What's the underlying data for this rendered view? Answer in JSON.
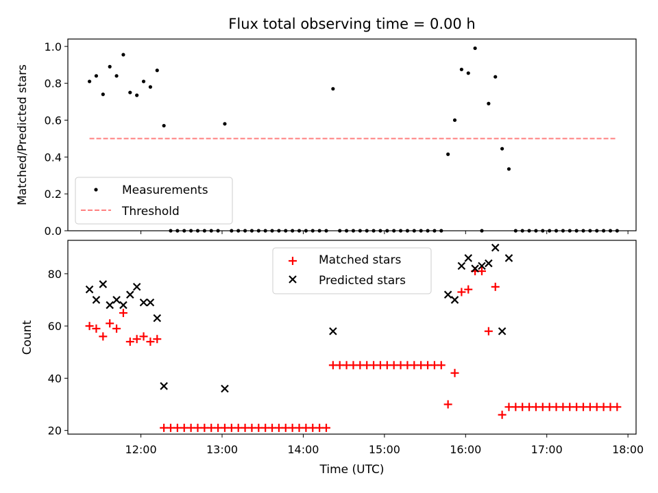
{
  "chart_data": [
    {
      "type": "scatter",
      "title": "Flux total observing time = 0.00 h",
      "xlabel": "",
      "ylabel": "Matched/Predicted stars",
      "xlim": [
        "11:06",
        "18:06"
      ],
      "ylim": [
        0,
        1.04
      ],
      "yticks": [
        0.0,
        0.2,
        0.4,
        0.6,
        0.8,
        1.0
      ],
      "ytick_labels": [
        "0.0",
        "0.2",
        "0.4",
        "0.6",
        "0.8",
        "1.0"
      ],
      "legend": {
        "position": "lower-left",
        "entries": [
          "Measurements",
          "Threshold"
        ]
      },
      "series": [
        {
          "name": "Measurements",
          "marker": "dot",
          "color": "#000000",
          "x": [
            "11:22",
            "11:27",
            "11:32",
            "11:37",
            "11:42",
            "11:47",
            "11:52",
            "11:57",
            "12:02",
            "12:07",
            "12:12",
            "12:17",
            "12:22",
            "12:27",
            "12:32",
            "12:37",
            "12:42",
            "12:47",
            "12:52",
            "12:57",
            "13:02",
            "13:07",
            "13:12",
            "13:17",
            "13:22",
            "13:27",
            "13:32",
            "13:37",
            "13:42",
            "13:47",
            "13:52",
            "13:57",
            "14:02",
            "14:07",
            "14:12",
            "14:17",
            "14:22",
            "14:27",
            "14:32",
            "14:37",
            "14:42",
            "14:47",
            "14:52",
            "14:57",
            "15:02",
            "15:07",
            "15:12",
            "15:17",
            "15:22",
            "15:27",
            "15:32",
            "15:37",
            "15:42",
            "15:47",
            "15:52",
            "15:57",
            "16:02",
            "16:07",
            "16:12",
            "16:17",
            "16:22",
            "16:27",
            "16:32",
            "16:37",
            "16:42",
            "16:47",
            "16:52",
            "16:57",
            "17:02",
            "17:07",
            "17:12",
            "17:17",
            "17:22",
            "17:27",
            "17:32",
            "17:37",
            "17:42",
            "17:47",
            "17:52"
          ],
          "y": [
            0.81,
            0.84,
            0.74,
            0.89,
            0.84,
            0.955,
            0.75,
            0.735,
            0.81,
            0.78,
            0.87,
            0.57,
            0.0,
            0.0,
            0.0,
            0.0,
            0.0,
            0.0,
            0.0,
            0.0,
            0.58,
            0.0,
            0.0,
            0.0,
            0.0,
            0.0,
            0.0,
            0.0,
            0.0,
            0.0,
            0.0,
            0.0,
            0.0,
            0.0,
            0.0,
            0.0,
            0.77,
            0.0,
            0.0,
            0.0,
            0.0,
            0.0,
            0.0,
            0.0,
            0.0,
            0.0,
            0.0,
            0.0,
            0.0,
            0.0,
            0.0,
            0.0,
            0.0,
            0.415,
            0.6,
            0.875,
            0.855,
            0.99,
            0.0,
            0.69,
            0.835,
            0.445,
            0.335,
            0.0,
            0.0,
            0.0,
            0.0,
            0.0,
            0.0,
            0.0,
            0.0,
            0.0,
            0.0,
            0.0,
            0.0,
            0.0,
            0.0,
            0.0,
            0.0
          ]
        },
        {
          "name": "Threshold",
          "line": "dashed",
          "color": "#ff7f7f",
          "x": [
            "11:22",
            "17:52"
          ],
          "y": [
            0.5,
            0.5
          ]
        }
      ]
    },
    {
      "type": "scatter",
      "title": "",
      "xlabel": "Time (UTC)",
      "ylabel": "Count",
      "xlim": [
        "11:06",
        "18:06"
      ],
      "ylim": [
        18.6,
        92.8
      ],
      "xticks": [
        "12:00",
        "13:00",
        "14:00",
        "15:00",
        "16:00",
        "17:00",
        "18:00"
      ],
      "xtick_labels": [
        "12:00",
        "13:00",
        "14:00",
        "15:00",
        "16:00",
        "17:00",
        "18:00"
      ],
      "yticks": [
        20,
        40,
        60,
        80
      ],
      "ytick_labels": [
        "20",
        "40",
        "60",
        "80"
      ],
      "legend": {
        "position": "top-center",
        "entries": [
          "Matched stars",
          "Predicted stars"
        ]
      },
      "series": [
        {
          "name": "Matched stars",
          "marker": "plus",
          "color": "#ff0000",
          "x": [
            "11:22",
            "11:27",
            "11:32",
            "11:37",
            "11:42",
            "11:47",
            "11:52",
            "11:57",
            "12:02",
            "12:07",
            "12:12",
            "12:17",
            "12:22",
            "12:27",
            "12:32",
            "12:37",
            "12:42",
            "12:47",
            "12:52",
            "12:57",
            "13:02",
            "13:07",
            "13:12",
            "13:17",
            "13:22",
            "13:27",
            "13:32",
            "13:37",
            "13:42",
            "13:47",
            "13:52",
            "13:57",
            "14:02",
            "14:07",
            "14:12",
            "14:17",
            "14:22",
            "14:27",
            "14:32",
            "14:37",
            "14:42",
            "14:47",
            "14:52",
            "14:57",
            "15:02",
            "15:07",
            "15:12",
            "15:17",
            "15:22",
            "15:27",
            "15:32",
            "15:37",
            "15:42",
            "15:47",
            "15:52",
            "15:57",
            "16:02",
            "16:07",
            "16:12",
            "16:17",
            "16:22",
            "16:27",
            "16:32",
            "16:37",
            "16:42",
            "16:47",
            "16:52",
            "16:57",
            "17:02",
            "17:07",
            "17:12",
            "17:17",
            "17:22",
            "17:27",
            "17:32",
            "17:37",
            "17:42",
            "17:47",
            "17:52"
          ],
          "y": [
            60,
            59,
            56,
            61,
            59,
            65,
            54,
            55,
            56,
            54,
            55,
            21,
            21,
            21,
            21,
            21,
            21,
            21,
            21,
            21,
            21,
            21,
            21,
            21,
            21,
            21,
            21,
            21,
            21,
            21,
            21,
            21,
            21,
            21,
            21,
            21,
            45,
            45,
            45,
            45,
            45,
            45,
            45,
            45,
            45,
            45,
            45,
            45,
            45,
            45,
            45,
            45,
            45,
            30,
            42,
            73,
            74,
            81,
            81,
            58,
            75,
            26,
            29,
            29,
            29,
            29,
            29,
            29,
            29,
            29,
            29,
            29,
            29,
            29,
            29,
            29,
            29,
            29,
            29
          ]
        },
        {
          "name": "Predicted stars",
          "marker": "x",
          "color": "#000000",
          "x": [
            "11:22",
            "11:27",
            "11:32",
            "11:37",
            "11:42",
            "11:47",
            "11:52",
            "11:57",
            "12:02",
            "12:07",
            "12:12",
            "12:17",
            "13:02",
            "14:22",
            "15:47",
            "15:52",
            "15:57",
            "16:02",
            "16:07",
            "16:12",
            "16:17",
            "16:22",
            "16:27",
            "16:32"
          ],
          "y": [
            74,
            70,
            76,
            68,
            70,
            68,
            72,
            75,
            69,
            69,
            63,
            37,
            36,
            58,
            72,
            70,
            83,
            86,
            82,
            83,
            84,
            90,
            58,
            86
          ]
        }
      ]
    }
  ]
}
